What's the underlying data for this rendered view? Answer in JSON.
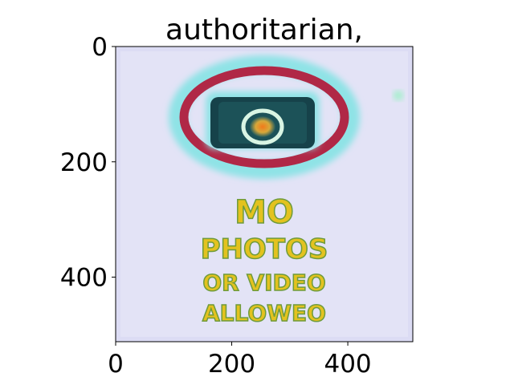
{
  "chart_data": {
    "type": "heatmap",
    "title": "authoritarian,",
    "xlabel": "",
    "ylabel": "",
    "xlim": [
      0,
      512
    ],
    "ylim": [
      512,
      0
    ],
    "x_ticks": [
      {
        "value": 0,
        "label": "0"
      },
      {
        "value": 200,
        "label": "200"
      },
      {
        "value": 400,
        "label": "400"
      }
    ],
    "y_ticks": [
      {
        "value": 0,
        "label": "0"
      },
      {
        "value": 200,
        "label": "200"
      },
      {
        "value": 400,
        "label": "400"
      }
    ],
    "grid": false,
    "colormap": "jet overlay on image",
    "image_content": {
      "sign_lines": [
        "MO",
        "PHOTOS",
        "OR VIDEO",
        "ALLOWEO"
      ],
      "pictogram": "camera-in-circle"
    }
  },
  "colors": {
    "background": "#ffffff",
    "plot_background": "#dcdcf4",
    "ring": "#b02846",
    "camera_body": "#16424a",
    "text_fill": "#e3c21f",
    "text_halo": "#7fd9a8"
  }
}
